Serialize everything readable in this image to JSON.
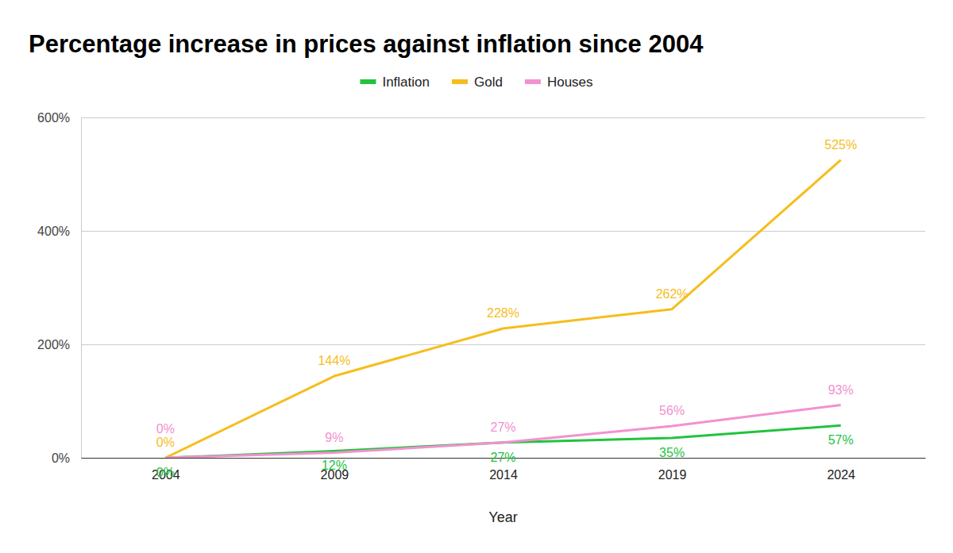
{
  "chart_data": {
    "type": "line",
    "title": "Percentage increase in prices against inflation since 2004",
    "x_label": "Year",
    "categories": [
      "2004",
      "2009",
      "2014",
      "2019",
      "2024"
    ],
    "series": [
      {
        "name": "Inflation",
        "color": "#22c33f",
        "values": [
          0,
          12,
          27,
          35,
          57
        ],
        "value_labels": [
          "0%",
          "12%",
          "27%",
          "35%",
          "57%"
        ]
      },
      {
        "name": "Gold",
        "color": "#f6bd1c",
        "values": [
          0,
          144,
          228,
          262,
          525
        ],
        "value_labels": [
          "0%",
          "144%",
          "228%",
          "262%",
          "525%"
        ]
      },
      {
        "name": "Houses",
        "color": "#f291cf",
        "values": [
          0,
          9,
          27,
          56,
          93
        ],
        "value_labels": [
          "0%",
          "9%",
          "27%",
          "56%",
          "93%"
        ]
      }
    ],
    "ylim": [
      0,
      600
    ],
    "yticks": [
      {
        "value": 0,
        "label": "0%"
      },
      {
        "value": 200,
        "label": "200%"
      },
      {
        "value": 400,
        "label": "400%"
      },
      {
        "value": 600,
        "label": "600%"
      }
    ],
    "grid": true,
    "legend": "top",
    "data_labels": true
  }
}
